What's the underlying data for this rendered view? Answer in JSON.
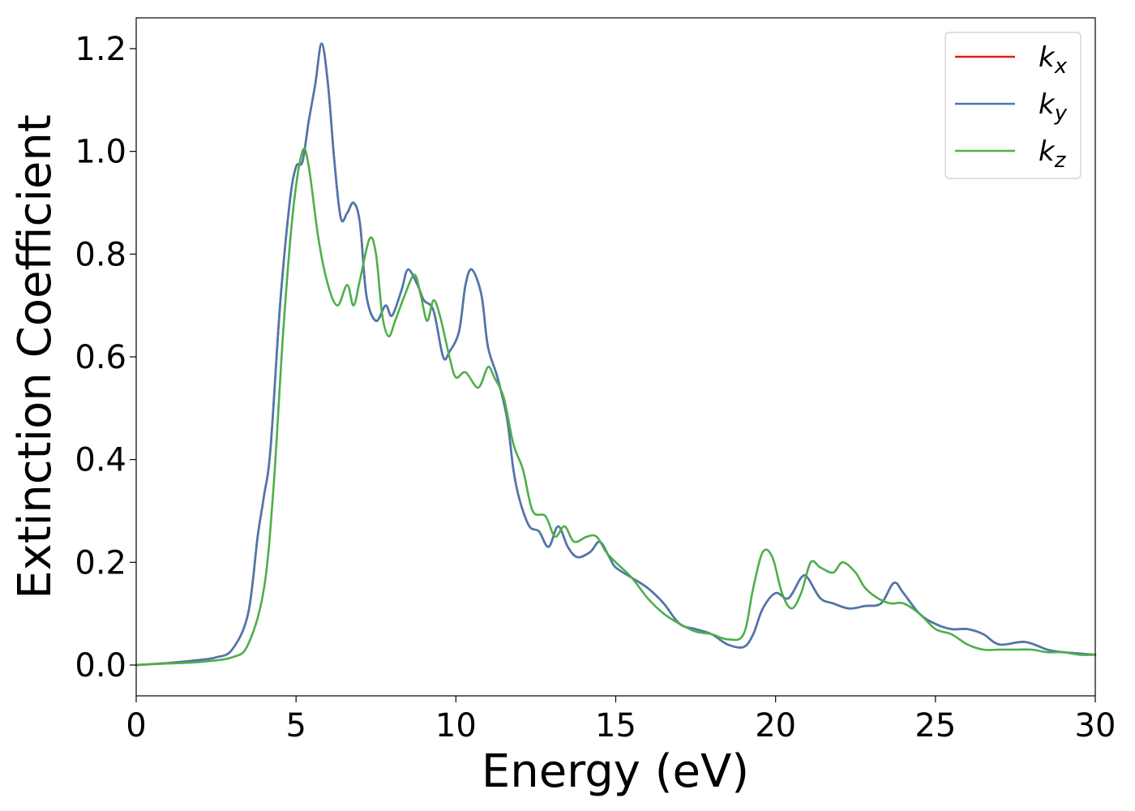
{
  "chart_data": {
    "type": "line",
    "title": "",
    "xlabel": "Energy (eV)",
    "ylabel": "Extinction Coefficient",
    "xlim": [
      0,
      30
    ],
    "ylim": [
      -0.06,
      1.26
    ],
    "xticks": [
      0,
      5,
      10,
      15,
      20,
      25,
      30
    ],
    "xtick_labels": [
      "0",
      "5",
      "10",
      "15",
      "20",
      "25",
      "30"
    ],
    "yticks": [
      0.0,
      0.2,
      0.4,
      0.6,
      0.8,
      1.0,
      1.2
    ],
    "ytick_labels": [
      "0.0",
      "0.2",
      "0.4",
      "0.6",
      "0.8",
      "1.0",
      "1.2"
    ],
    "grid": false,
    "legend_position": "top-right",
    "series": [
      {
        "name": "k_x",
        "legend_base": "k",
        "legend_sub": "x",
        "color": "#e41a1c",
        "points": [
          [
            0,
            0
          ],
          [
            1,
            0.004
          ],
          [
            2,
            0.01
          ],
          [
            2.5,
            0.015
          ],
          [
            3,
            0.03
          ],
          [
            3.5,
            0.1
          ],
          [
            3.8,
            0.25
          ],
          [
            4.0,
            0.33
          ],
          [
            4.2,
            0.42
          ],
          [
            4.5,
            0.7
          ],
          [
            4.8,
            0.9
          ],
          [
            5.0,
            0.97
          ],
          [
            5.2,
            0.98
          ],
          [
            5.4,
            1.06
          ],
          [
            5.6,
            1.13
          ],
          [
            5.8,
            1.21
          ],
          [
            6.0,
            1.13
          ],
          [
            6.2,
            0.98
          ],
          [
            6.4,
            0.87
          ],
          [
            6.6,
            0.88
          ],
          [
            6.8,
            0.9
          ],
          [
            7.0,
            0.86
          ],
          [
            7.2,
            0.72
          ],
          [
            7.5,
            0.67
          ],
          [
            7.8,
            0.7
          ],
          [
            8.0,
            0.68
          ],
          [
            8.3,
            0.73
          ],
          [
            8.5,
            0.77
          ],
          [
            8.8,
            0.74
          ],
          [
            9.0,
            0.71
          ],
          [
            9.3,
            0.69
          ],
          [
            9.6,
            0.6
          ],
          [
            9.8,
            0.61
          ],
          [
            10.1,
            0.65
          ],
          [
            10.3,
            0.74
          ],
          [
            10.5,
            0.77
          ],
          [
            10.8,
            0.72
          ],
          [
            11.0,
            0.62
          ],
          [
            11.3,
            0.56
          ],
          [
            11.6,
            0.48
          ],
          [
            11.8,
            0.38
          ],
          [
            12.0,
            0.32
          ],
          [
            12.3,
            0.27
          ],
          [
            12.6,
            0.26
          ],
          [
            12.9,
            0.23
          ],
          [
            13.2,
            0.27
          ],
          [
            13.5,
            0.23
          ],
          [
            13.8,
            0.21
          ],
          [
            14.2,
            0.22
          ],
          [
            14.5,
            0.24
          ],
          [
            14.8,
            0.21
          ],
          [
            15.0,
            0.19
          ],
          [
            15.5,
            0.17
          ],
          [
            16.0,
            0.15
          ],
          [
            16.5,
            0.12
          ],
          [
            17.0,
            0.08
          ],
          [
            17.5,
            0.07
          ],
          [
            18.0,
            0.06
          ],
          [
            18.5,
            0.04
          ],
          [
            19.0,
            0.035
          ],
          [
            19.3,
            0.06
          ],
          [
            19.6,
            0.11
          ],
          [
            20.0,
            0.14
          ],
          [
            20.4,
            0.13
          ],
          [
            20.8,
            0.17
          ],
          [
            21.0,
            0.17
          ],
          [
            21.4,
            0.13
          ],
          [
            21.8,
            0.12
          ],
          [
            22.3,
            0.11
          ],
          [
            22.8,
            0.115
          ],
          [
            23.3,
            0.12
          ],
          [
            23.7,
            0.16
          ],
          [
            24.0,
            0.14
          ],
          [
            24.5,
            0.1
          ],
          [
            25.0,
            0.08
          ],
          [
            25.5,
            0.07
          ],
          [
            26.0,
            0.07
          ],
          [
            26.5,
            0.06
          ],
          [
            27.0,
            0.04
          ],
          [
            27.8,
            0.045
          ],
          [
            28.5,
            0.03
          ],
          [
            29.0,
            0.025
          ],
          [
            30,
            0.02
          ]
        ]
      },
      {
        "name": "k_y",
        "legend_base": "k",
        "legend_sub": "y",
        "color": "#4a78b0",
        "points": [
          [
            0,
            0
          ],
          [
            1,
            0.004
          ],
          [
            2,
            0.01
          ],
          [
            2.5,
            0.015
          ],
          [
            3,
            0.03
          ],
          [
            3.5,
            0.1
          ],
          [
            3.8,
            0.25
          ],
          [
            4.0,
            0.33
          ],
          [
            4.2,
            0.42
          ],
          [
            4.5,
            0.7
          ],
          [
            4.8,
            0.9
          ],
          [
            5.0,
            0.97
          ],
          [
            5.2,
            0.98
          ],
          [
            5.4,
            1.06
          ],
          [
            5.6,
            1.13
          ],
          [
            5.8,
            1.21
          ],
          [
            6.0,
            1.13
          ],
          [
            6.2,
            0.98
          ],
          [
            6.4,
            0.87
          ],
          [
            6.6,
            0.88
          ],
          [
            6.8,
            0.9
          ],
          [
            7.0,
            0.86
          ],
          [
            7.2,
            0.72
          ],
          [
            7.5,
            0.67
          ],
          [
            7.8,
            0.7
          ],
          [
            8.0,
            0.68
          ],
          [
            8.3,
            0.73
          ],
          [
            8.5,
            0.77
          ],
          [
            8.8,
            0.74
          ],
          [
            9.0,
            0.71
          ],
          [
            9.3,
            0.69
          ],
          [
            9.6,
            0.6
          ],
          [
            9.8,
            0.61
          ],
          [
            10.1,
            0.65
          ],
          [
            10.3,
            0.74
          ],
          [
            10.5,
            0.77
          ],
          [
            10.8,
            0.72
          ],
          [
            11.0,
            0.62
          ],
          [
            11.3,
            0.56
          ],
          [
            11.6,
            0.48
          ],
          [
            11.8,
            0.38
          ],
          [
            12.0,
            0.32
          ],
          [
            12.3,
            0.27
          ],
          [
            12.6,
            0.26
          ],
          [
            12.9,
            0.23
          ],
          [
            13.2,
            0.27
          ],
          [
            13.5,
            0.23
          ],
          [
            13.8,
            0.21
          ],
          [
            14.2,
            0.22
          ],
          [
            14.5,
            0.24
          ],
          [
            14.8,
            0.21
          ],
          [
            15.0,
            0.19
          ],
          [
            15.5,
            0.17
          ],
          [
            16.0,
            0.15
          ],
          [
            16.5,
            0.12
          ],
          [
            17.0,
            0.08
          ],
          [
            17.5,
            0.07
          ],
          [
            18.0,
            0.06
          ],
          [
            18.5,
            0.04
          ],
          [
            19.0,
            0.035
          ],
          [
            19.3,
            0.06
          ],
          [
            19.6,
            0.11
          ],
          [
            20.0,
            0.14
          ],
          [
            20.4,
            0.13
          ],
          [
            20.8,
            0.17
          ],
          [
            21.0,
            0.17
          ],
          [
            21.4,
            0.13
          ],
          [
            21.8,
            0.12
          ],
          [
            22.3,
            0.11
          ],
          [
            22.8,
            0.115
          ],
          [
            23.3,
            0.12
          ],
          [
            23.7,
            0.16
          ],
          [
            24.0,
            0.14
          ],
          [
            24.5,
            0.1
          ],
          [
            25.0,
            0.08
          ],
          [
            25.5,
            0.07
          ],
          [
            26.0,
            0.07
          ],
          [
            26.5,
            0.06
          ],
          [
            27.0,
            0.04
          ],
          [
            27.8,
            0.045
          ],
          [
            28.5,
            0.03
          ],
          [
            29.0,
            0.025
          ],
          [
            30,
            0.02
          ]
        ]
      },
      {
        "name": "k_z",
        "legend_base": "k",
        "legend_sub": "z",
        "color": "#4daf4a",
        "points": [
          [
            0,
            0
          ],
          [
            1,
            0.003
          ],
          [
            2,
            0.006
          ],
          [
            3,
            0.015
          ],
          [
            3.5,
            0.04
          ],
          [
            4.0,
            0.15
          ],
          [
            4.3,
            0.35
          ],
          [
            4.6,
            0.65
          ],
          [
            4.9,
            0.88
          ],
          [
            5.2,
            1.0
          ],
          [
            5.4,
            0.97
          ],
          [
            5.7,
            0.83
          ],
          [
            6.0,
            0.74
          ],
          [
            6.3,
            0.7
          ],
          [
            6.6,
            0.74
          ],
          [
            6.8,
            0.7
          ],
          [
            7.0,
            0.75
          ],
          [
            7.3,
            0.83
          ],
          [
            7.5,
            0.8
          ],
          [
            7.7,
            0.68
          ],
          [
            7.9,
            0.64
          ],
          [
            8.1,
            0.67
          ],
          [
            8.4,
            0.72
          ],
          [
            8.7,
            0.76
          ],
          [
            8.9,
            0.72
          ],
          [
            9.1,
            0.67
          ],
          [
            9.3,
            0.71
          ],
          [
            9.5,
            0.68
          ],
          [
            9.8,
            0.6
          ],
          [
            10.0,
            0.56
          ],
          [
            10.3,
            0.57
          ],
          [
            10.7,
            0.54
          ],
          [
            11.0,
            0.58
          ],
          [
            11.2,
            0.56
          ],
          [
            11.5,
            0.52
          ],
          [
            11.8,
            0.43
          ],
          [
            12.1,
            0.38
          ],
          [
            12.4,
            0.3
          ],
          [
            12.8,
            0.29
          ],
          [
            13.1,
            0.25
          ],
          [
            13.4,
            0.27
          ],
          [
            13.7,
            0.24
          ],
          [
            14.1,
            0.25
          ],
          [
            14.4,
            0.25
          ],
          [
            14.7,
            0.22
          ],
          [
            15.0,
            0.2
          ],
          [
            15.5,
            0.17
          ],
          [
            16.0,
            0.13
          ],
          [
            16.5,
            0.1
          ],
          [
            17.0,
            0.08
          ],
          [
            17.5,
            0.065
          ],
          [
            18.0,
            0.06
          ],
          [
            18.5,
            0.05
          ],
          [
            19.0,
            0.06
          ],
          [
            19.3,
            0.15
          ],
          [
            19.6,
            0.22
          ],
          [
            19.9,
            0.21
          ],
          [
            20.2,
            0.14
          ],
          [
            20.5,
            0.11
          ],
          [
            20.8,
            0.14
          ],
          [
            21.1,
            0.2
          ],
          [
            21.4,
            0.19
          ],
          [
            21.8,
            0.18
          ],
          [
            22.1,
            0.2
          ],
          [
            22.5,
            0.18
          ],
          [
            22.8,
            0.15
          ],
          [
            23.2,
            0.13
          ],
          [
            23.6,
            0.12
          ],
          [
            24.0,
            0.12
          ],
          [
            24.5,
            0.1
          ],
          [
            25.0,
            0.07
          ],
          [
            25.5,
            0.06
          ],
          [
            26.0,
            0.04
          ],
          [
            26.5,
            0.03
          ],
          [
            27.0,
            0.03
          ],
          [
            27.5,
            0.03
          ],
          [
            28.0,
            0.03
          ],
          [
            28.5,
            0.025
          ],
          [
            29.0,
            0.025
          ],
          [
            29.5,
            0.02
          ],
          [
            30,
            0.02
          ]
        ]
      }
    ]
  }
}
